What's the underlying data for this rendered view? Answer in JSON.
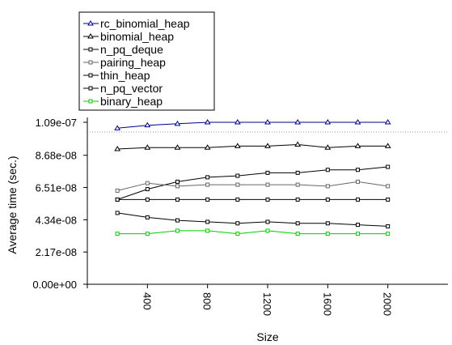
{
  "chart_data": {
    "type": "line",
    "title": "",
    "xlabel": "Size",
    "ylabel": "Average time (sec.)",
    "xlim": [
      0,
      2400
    ],
    "ylim": [
      0,
      1.09e-07
    ],
    "xticks": [
      400,
      800,
      1200,
      1600,
      2000
    ],
    "xtick_labels": [
      "400",
      "800",
      "1200",
      "1600",
      "2000"
    ],
    "yticks": [
      0,
      2.17e-08,
      4.34e-08,
      6.51e-08,
      8.68e-08,
      1.09e-07
    ],
    "ytick_labels": [
      "0.00e+00",
      "2.17e-08",
      "4.34e-08",
      "6.51e-08",
      "8.68e-08",
      "1.09e-07"
    ],
    "x": [
      200,
      400,
      600,
      800,
      1000,
      1200,
      1400,
      1600,
      1800,
      2000
    ],
    "legend_position": "top-left",
    "series": [
      {
        "name": "rc_binomial_heap",
        "color": "#00008b",
        "marker": "triangle",
        "values": [
          1.05e-07,
          1.07e-07,
          1.08e-07,
          1.09e-07,
          1.09e-07,
          1.09e-07,
          1.09e-07,
          1.09e-07,
          1.09e-07,
          1.09e-07
        ]
      },
      {
        "name": "binomial_heap",
        "color": "#000000",
        "marker": "triangle",
        "values": [
          9.1e-08,
          9.2e-08,
          9.2e-08,
          9.2e-08,
          9.3e-08,
          9.3e-08,
          9.4e-08,
          9.2e-08,
          9.3e-08,
          9.3e-08
        ]
      },
      {
        "name": "n_pq_deque",
        "color": "#000000",
        "marker": "square",
        "values": [
          5.7e-08,
          6.4e-08,
          6.9e-08,
          7.2e-08,
          7.3e-08,
          7.5e-08,
          7.5e-08,
          7.7e-08,
          7.7e-08,
          7.9e-08
        ]
      },
      {
        "name": "pairing_heap",
        "color": "#666666",
        "marker": "square",
        "values": [
          6.3e-08,
          6.8e-08,
          6.6e-08,
          6.7e-08,
          6.7e-08,
          6.7e-08,
          6.7e-08,
          6.6e-08,
          6.9e-08,
          6.6e-08
        ]
      },
      {
        "name": "thin_heap",
        "color": "#000000",
        "marker": "square",
        "values": [
          5.7e-08,
          5.7e-08,
          5.7e-08,
          5.7e-08,
          5.7e-08,
          5.7e-08,
          5.7e-08,
          5.7e-08,
          5.7e-08,
          5.7e-08
        ]
      },
      {
        "name": "n_pq_vector",
        "color": "#000000",
        "marker": "square",
        "values": [
          4.8e-08,
          4.5e-08,
          4.3e-08,
          4.2e-08,
          4.1e-08,
          4.2e-08,
          4.1e-08,
          4.1e-08,
          4e-08,
          3.9e-08
        ]
      },
      {
        "name": "binary_heap",
        "color": "#00cc00",
        "marker": "square",
        "values": [
          3.4e-08,
          3.4e-08,
          3.6e-08,
          3.6e-08,
          3.4e-08,
          3.6e-08,
          3.4e-08,
          3.4e-08,
          3.4e-08,
          3.4e-08
        ]
      }
    ]
  }
}
